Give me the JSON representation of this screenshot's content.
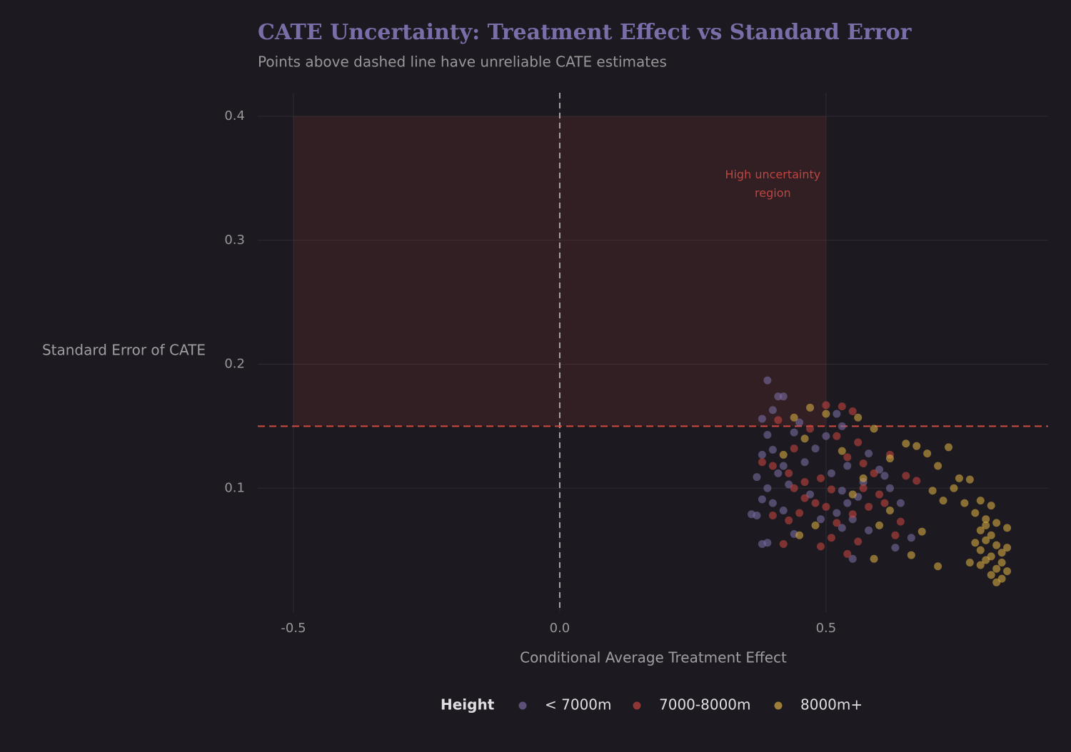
{
  "chart_data": {
    "type": "scatter",
    "title": "CATE Uncertainty: Treatment Effect vs Standard Error",
    "subtitle": "Points above dashed line have unreliable CATE estimates",
    "x_label": "Conditional Average Treatment Effect",
    "y_label": "Standard Error of CATE",
    "xlim": [
      -0.567,
      0.917
    ],
    "ylim": [
      0.0,
      0.419
    ],
    "xticks": [
      -0.5,
      {
        "value": 0,
        "label": "0.0"
      },
      0.5
    ],
    "yticks": [
      0.1,
      0.2,
      0.3,
      0.4
    ],
    "grid": true,
    "threshold": 0.15,
    "reference_x": 0,
    "shaded_region": {
      "xlim": [
        -0.5,
        0.5
      ],
      "ylim": [
        0.15,
        0.4
      ]
    },
    "annotation": {
      "lines": [
        "High uncertainty",
        "region"
      ],
      "x": 0.4,
      "y": 0.345
    },
    "legend_title": "Height",
    "legend_position": "bottom",
    "series": [
      {
        "name": "< 7000m",
        "color": "#7a6aa0",
        "x": [
          0.39,
          0.41,
          0.42,
          0.38,
          0.4,
          0.45,
          0.44,
          0.39,
          0.38,
          0.4,
          0.42,
          0.37,
          0.39,
          0.41,
          0.43,
          0.38,
          0.37,
          0.4,
          0.42,
          0.44,
          0.38,
          0.39,
          0.46,
          0.48,
          0.5,
          0.52,
          0.53,
          0.51,
          0.53,
          0.54,
          0.52,
          0.55,
          0.53,
          0.56,
          0.54,
          0.57,
          0.58,
          0.6,
          0.62,
          0.64,
          0.66,
          0.63,
          0.55,
          0.58,
          0.61,
          0.49,
          0.47,
          0.36
        ],
        "values": [
          0.187,
          0.174,
          0.174,
          0.156,
          0.163,
          0.153,
          0.145,
          0.143,
          0.127,
          0.131,
          0.118,
          0.109,
          0.1,
          0.112,
          0.103,
          0.091,
          0.078,
          0.088,
          0.082,
          0.063,
          0.055,
          0.056,
          0.121,
          0.132,
          0.142,
          0.16,
          0.15,
          0.112,
          0.098,
          0.088,
          0.08,
          0.075,
          0.068,
          0.093,
          0.118,
          0.105,
          0.128,
          0.115,
          0.1,
          0.088,
          0.06,
          0.052,
          0.043,
          0.066,
          0.11,
          0.075,
          0.095,
          0.079
        ]
      },
      {
        "name": "7000-8000m",
        "color": "#c0443f",
        "x": [
          0.53,
          0.5,
          0.55,
          0.41,
          0.47,
          0.52,
          0.56,
          0.44,
          0.38,
          0.4,
          0.43,
          0.46,
          0.49,
          0.51,
          0.54,
          0.57,
          0.59,
          0.62,
          0.65,
          0.67,
          0.6,
          0.58,
          0.55,
          0.52,
          0.48,
          0.45,
          0.43,
          0.4,
          0.42,
          0.49,
          0.51,
          0.54,
          0.56,
          0.63,
          0.64,
          0.61,
          0.46,
          0.5,
          0.57,
          0.44
        ],
        "values": [
          0.166,
          0.167,
          0.162,
          0.155,
          0.148,
          0.142,
          0.137,
          0.132,
          0.121,
          0.118,
          0.112,
          0.105,
          0.108,
          0.099,
          0.125,
          0.12,
          0.112,
          0.127,
          0.11,
          0.106,
          0.095,
          0.085,
          0.079,
          0.072,
          0.088,
          0.08,
          0.074,
          0.078,
          0.055,
          0.053,
          0.06,
          0.047,
          0.057,
          0.062,
          0.073,
          0.088,
          0.092,
          0.085,
          0.1,
          0.1
        ]
      },
      {
        "name": "8000m+",
        "color": "#d4a843",
        "x": [
          0.47,
          0.5,
          0.44,
          0.56,
          0.59,
          0.46,
          0.42,
          0.62,
          0.65,
          0.67,
          0.73,
          0.69,
          0.71,
          0.75,
          0.77,
          0.74,
          0.7,
          0.72,
          0.76,
          0.79,
          0.81,
          0.78,
          0.8,
          0.82,
          0.84,
          0.79,
          0.81,
          0.8,
          0.78,
          0.82,
          0.84,
          0.83,
          0.81,
          0.8,
          0.79,
          0.82,
          0.84,
          0.81,
          0.83,
          0.82,
          0.77,
          0.71,
          0.68,
          0.66,
          0.59,
          0.6,
          0.55,
          0.53,
          0.48,
          0.45,
          0.62,
          0.57,
          0.8,
          0.79,
          0.83
        ],
        "values": [
          0.165,
          0.16,
          0.157,
          0.157,
          0.148,
          0.14,
          0.127,
          0.124,
          0.136,
          0.134,
          0.133,
          0.128,
          0.118,
          0.108,
          0.107,
          0.1,
          0.098,
          0.09,
          0.088,
          0.09,
          0.086,
          0.08,
          0.075,
          0.072,
          0.068,
          0.066,
          0.062,
          0.058,
          0.056,
          0.054,
          0.052,
          0.048,
          0.045,
          0.042,
          0.038,
          0.035,
          0.033,
          0.03,
          0.027,
          0.024,
          0.04,
          0.037,
          0.065,
          0.046,
          0.043,
          0.07,
          0.095,
          0.13,
          0.07,
          0.062,
          0.082,
          0.108,
          0.07,
          0.05,
          0.04
        ]
      }
    ]
  }
}
